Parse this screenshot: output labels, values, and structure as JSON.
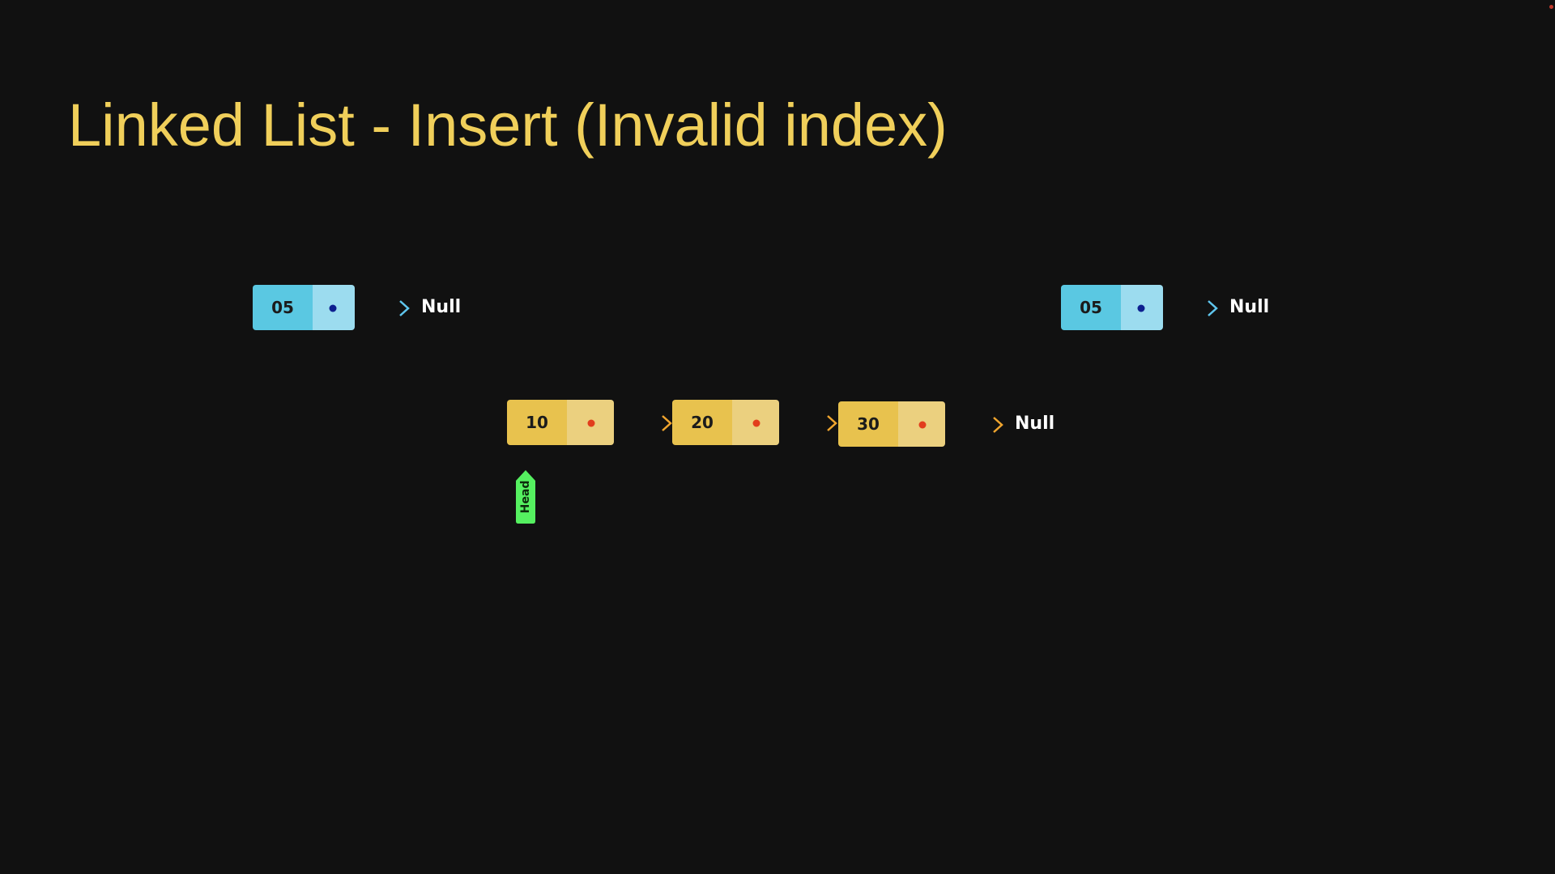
{
  "slide": {
    "title": "Linked List - Insert (Invalid index)"
  },
  "colors": {
    "background": "#111111",
    "title": "#f0cf5a",
    "new_node_value": "#5ac8e2",
    "new_node_pointer": "#9cdcef",
    "list_node_value": "#e8c24e",
    "list_node_pointer": "#ebd07f",
    "blue_arrow": "#1e3fb0",
    "red_arrow": "#e64a1e",
    "head_tag": "#55f060"
  },
  "new_node_left": {
    "value": "05",
    "next": "Null"
  },
  "new_node_right": {
    "value": "05",
    "next": "Null"
  },
  "list": {
    "nodes": [
      {
        "value": "10"
      },
      {
        "value": "20"
      },
      {
        "value": "30"
      }
    ],
    "tail_next": "Null",
    "head_label": "Head"
  }
}
